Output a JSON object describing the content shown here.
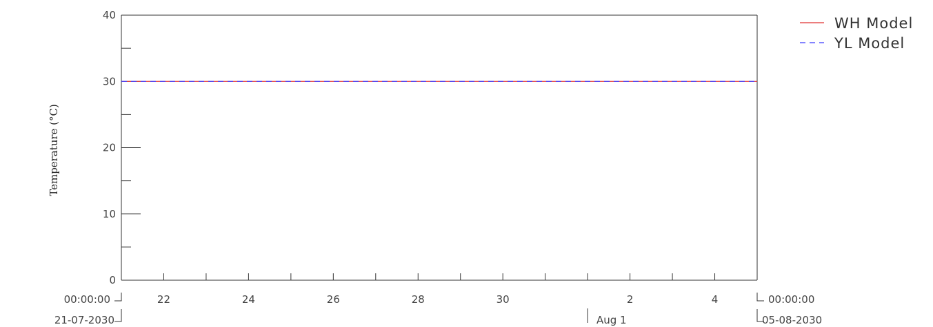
{
  "chart_data": {
    "type": "line",
    "ylabel": "Temperature (°C)",
    "ylim": [
      0,
      40
    ],
    "y_ticks": [
      0,
      10,
      20,
      30,
      40
    ],
    "x_range": [
      "2030-07-21 00:00:00",
      "2030-08-05 00:00:00"
    ],
    "x_tick_labels": [
      {
        "date": "2030-07-22",
        "label": "22"
      },
      {
        "date": "2030-07-24",
        "label": "24"
      },
      {
        "date": "2030-07-26",
        "label": "26"
      },
      {
        "date": "2030-07-28",
        "label": "28"
      },
      {
        "date": "2030-07-30",
        "label": "30"
      },
      {
        "date": "2030-08-02",
        "label": "2"
      },
      {
        "date": "2030-08-04",
        "label": "4"
      }
    ],
    "x_minor_ticks": [
      "2030-07-23",
      "2030-07-25",
      "2030-07-27",
      "2030-07-29",
      "2030-07-31",
      "2030-08-01",
      "2030-08-03"
    ],
    "month_marker": {
      "date": "2030-08-01",
      "label": "Aug 1"
    },
    "start_label": {
      "time": "00:00:00",
      "date": "21-07-2030"
    },
    "end_label": {
      "time": "00:00:00",
      "date": "05-08-2030"
    },
    "grid": false,
    "legend_position": "top-right",
    "series": [
      {
        "name": "WH Model",
        "color": "#e03030",
        "style": "solid",
        "x": [
          "2030-07-21",
          "2030-08-05"
        ],
        "y": [
          30,
          30
        ]
      },
      {
        "name": "YL Model",
        "color": "#3a3aff",
        "style": "dashed",
        "x": [
          "2030-07-21",
          "2030-08-05"
        ],
        "y": [
          30,
          30
        ]
      }
    ]
  }
}
